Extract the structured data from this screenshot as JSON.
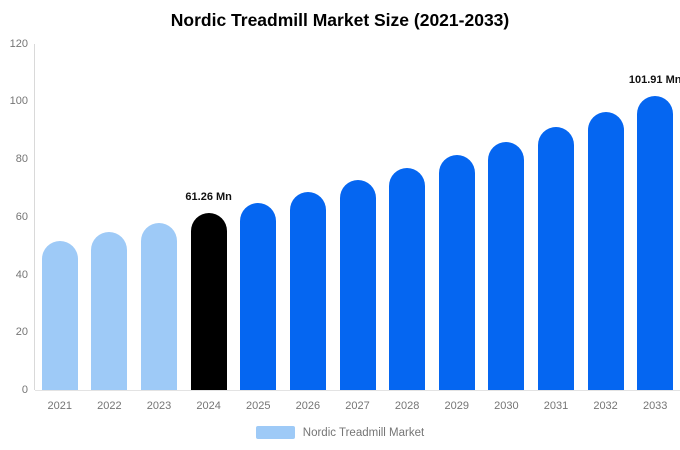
{
  "title": "Nordic Treadmill Market Size (2021-2033)",
  "legend": {
    "label": "Nordic Treadmill Market",
    "swatch_color": "#9ecaf7"
  },
  "colors": {
    "past": "#9ecaf7",
    "current": "#000000",
    "forecast": "#0566f1",
    "axis_text": "#757575",
    "axis_line": "#d9d9d9",
    "baseline_line": "#e3e3e3",
    "annotation_text": "#111111"
  },
  "chart_data": {
    "type": "bar",
    "title": "Nordic Treadmill Market Size (2021-2033)",
    "categories": [
      "2021",
      "2022",
      "2023",
      "2024",
      "2025",
      "2026",
      "2027",
      "2028",
      "2029",
      "2030",
      "2031",
      "2032",
      "2033"
    ],
    "values": [
      51.7,
      54.7,
      57.9,
      61.26,
      64.8,
      68.6,
      72.6,
      76.8,
      81.3,
      86.0,
      91.0,
      96.3,
      101.91
    ],
    "series_name": "Nordic Treadmill Market",
    "bar_styles": [
      "past",
      "past",
      "past",
      "current",
      "forecast",
      "forecast",
      "forecast",
      "forecast",
      "forecast",
      "forecast",
      "forecast",
      "forecast",
      "forecast"
    ],
    "annotations": [
      {
        "category": "2024",
        "text": "61.26 Mn"
      },
      {
        "category": "2033",
        "text": "101.91 Mn"
      }
    ],
    "xlabel": "",
    "ylabel": "",
    "ylim": [
      0,
      120
    ],
    "yticks": [
      0,
      20,
      40,
      60,
      80,
      100,
      120
    ],
    "grid": false,
    "legend_position": "bottom-center"
  }
}
